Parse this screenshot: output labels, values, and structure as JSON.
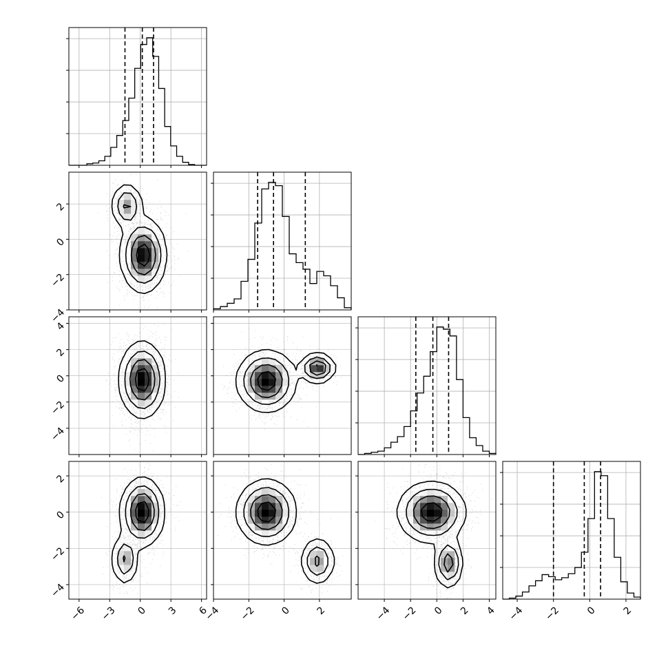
{
  "chart_data": {
    "type": "corner",
    "n_params": 4,
    "grid": true,
    "colors": {
      "line": "#000000",
      "grid": "#b0b0b0",
      "points": "#9a9a9a"
    },
    "ranges": [
      [
        -7,
        6.5
      ],
      [
        -4,
        3.8
      ],
      [
        -6,
        4.5
      ],
      [
        -4.8,
        2.8
      ]
    ],
    "x_ticks": [
      {
        "values": [
          -6,
          -3,
          0,
          3,
          6
        ],
        "labels": [
          "−6",
          "−3",
          "0",
          "3",
          "6"
        ]
      },
      {
        "values": [
          -4,
          -2,
          0,
          2
        ],
        "labels": [
          "−4",
          "−2",
          "0",
          "2"
        ]
      },
      {
        "values": [
          -4,
          -2,
          0,
          2,
          4
        ],
        "labels": [
          "−4",
          "−2",
          "0",
          "2",
          "4"
        ]
      },
      {
        "values": [
          -4,
          -2,
          0,
          2
        ],
        "labels": [
          "−4",
          "−2",
          "0",
          "2"
        ]
      }
    ],
    "y_ticks": [
      null,
      {
        "values": [
          -4,
          -2,
          0,
          2
        ],
        "labels": [
          "−4",
          "−2",
          "0",
          "2"
        ]
      },
      {
        "values": [
          -4,
          -2,
          0,
          2,
          4
        ],
        "labels": [
          "−4",
          "−2",
          "0",
          "2",
          "4"
        ]
      },
      {
        "values": [
          -4,
          -2,
          0,
          2
        ],
        "labels": [
          "−4",
          "−2",
          "0",
          "2"
        ]
      }
    ],
    "histograms": [
      {
        "param": 0,
        "bin_edges_range": [
          -7,
          6.5
        ],
        "counts": [
          0,
          0,
          0,
          2,
          3,
          6,
          12,
          24,
          40,
          60,
          90,
          130,
          162,
          171,
          146,
          103,
          52,
          26,
          12,
          4,
          1,
          0,
          0
        ],
        "quantiles": [
          -1.5,
          0.2,
          1.3
        ]
      },
      {
        "param": 1,
        "bin_edges_range": [
          -4,
          3.8
        ],
        "counts": [
          1,
          3,
          6,
          10,
          26,
          46,
          79,
          110,
          116,
          113,
          85,
          51,
          43,
          37,
          24,
          35,
          31,
          22,
          11,
          2
        ],
        "quantiles": [
          -1.5,
          -0.6,
          1.2
        ]
      },
      {
        "param": 2,
        "bin_edges_range": [
          -6,
          4.5
        ],
        "counts": [
          0,
          1,
          2,
          3,
          6,
          11,
          16,
          25,
          39,
          55,
          70,
          92,
          114,
          112,
          106,
          67,
          33,
          15,
          8,
          3,
          1
        ],
        "quantiles": [
          -1.6,
          -0.3,
          0.9
        ]
      },
      {
        "param": 3,
        "bin_edges_range": [
          -4.8,
          2.8
        ],
        "counts": [
          0,
          1,
          3,
          7,
          13,
          18,
          24,
          22,
          19,
          21,
          25,
          31,
          46,
          79,
          125,
          121,
          79,
          41,
          17,
          6,
          2
        ],
        "quantiles": [
          -2.0,
          -0.3,
          0.6
        ]
      }
    ],
    "panels_2d": [
      {
        "x_param": 0,
        "y_param": 1,
        "blobs": [
          {
            "mean": [
              0.3,
              -0.9
            ],
            "sd": [
              1.0,
              0.95
            ],
            "weight": 0.8
          },
          {
            "mean": [
              -1.3,
              1.9
            ],
            "sd": [
              0.7,
              0.6
            ],
            "weight": 0.2
          }
        ]
      },
      {
        "x_param": 0,
        "y_param": 2,
        "blobs": [
          {
            "mean": [
              0.2,
              -0.3
            ],
            "sd": [
              1.0,
              1.3
            ],
            "weight": 1.0
          }
        ]
      },
      {
        "x_param": 1,
        "y_param": 2,
        "blobs": [
          {
            "mean": [
              -1.0,
              -0.4
            ],
            "sd": [
              0.75,
              1.05
            ],
            "weight": 0.8
          },
          {
            "mean": [
              1.9,
              0.6
            ],
            "sd": [
              0.45,
              0.5
            ],
            "weight": 0.2
          }
        ]
      },
      {
        "x_param": 0,
        "y_param": 3,
        "blobs": [
          {
            "mean": [
              0.2,
              0.0
            ],
            "sd": [
              0.95,
              0.85
            ],
            "weight": 0.8
          },
          {
            "mean": [
              -1.5,
              -2.6
            ],
            "sd": [
              0.6,
              0.65
            ],
            "weight": 0.2
          }
        ]
      },
      {
        "x_param": 1,
        "y_param": 3,
        "blobs": [
          {
            "mean": [
              -1.0,
              0.0
            ],
            "sd": [
              0.75,
              0.8
            ],
            "weight": 0.8
          },
          {
            "mean": [
              1.9,
              -2.7
            ],
            "sd": [
              0.45,
              0.6
            ],
            "weight": 0.2
          }
        ]
      },
      {
        "x_param": 2,
        "y_param": 3,
        "blobs": [
          {
            "mean": [
              -0.4,
              0.0
            ],
            "sd": [
              1.15,
              0.75
            ],
            "weight": 0.8
          },
          {
            "mean": [
              0.9,
              -2.8
            ],
            "sd": [
              0.5,
              0.65
            ],
            "weight": 0.2
          }
        ]
      }
    ]
  }
}
